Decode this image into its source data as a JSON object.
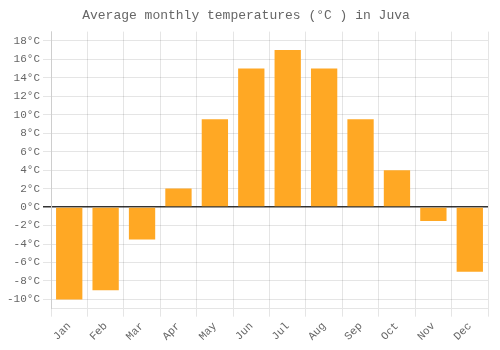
{
  "chart_data": {
    "type": "bar",
    "title": "Average monthly temperatures (°C ) in Juva",
    "categories": [
      "Jan",
      "Feb",
      "Mar",
      "Apr",
      "May",
      "Jun",
      "Jul",
      "Aug",
      "Sep",
      "Oct",
      "Nov",
      "Dec"
    ],
    "values": [
      -10,
      -9,
      -3.5,
      2,
      9.5,
      15,
      17,
      15,
      9.5,
      4,
      -1.5,
      -7
    ],
    "color": "#FFA824",
    "ylim": [
      -11,
      19
    ],
    "yticks": [
      {
        "value": -10,
        "label": "-10°C"
      },
      {
        "value": -8,
        "label": "-8°C"
      },
      {
        "value": -6,
        "label": "-6°C"
      },
      {
        "value": -4,
        "label": "-4°C"
      },
      {
        "value": -2,
        "label": "-2°C"
      },
      {
        "value": 0,
        "label": "0°C"
      },
      {
        "value": 2,
        "label": "2°C"
      },
      {
        "value": 4,
        "label": "4°C"
      },
      {
        "value": 6,
        "label": "6°C"
      },
      {
        "value": 8,
        "label": "8°C"
      },
      {
        "value": 10,
        "label": "10°C"
      },
      {
        "value": 12,
        "label": "12°C"
      },
      {
        "value": 14,
        "label": "14°C"
      },
      {
        "value": 16,
        "label": "16°C"
      },
      {
        "value": 18,
        "label": "18°C"
      }
    ],
    "grid": true
  }
}
